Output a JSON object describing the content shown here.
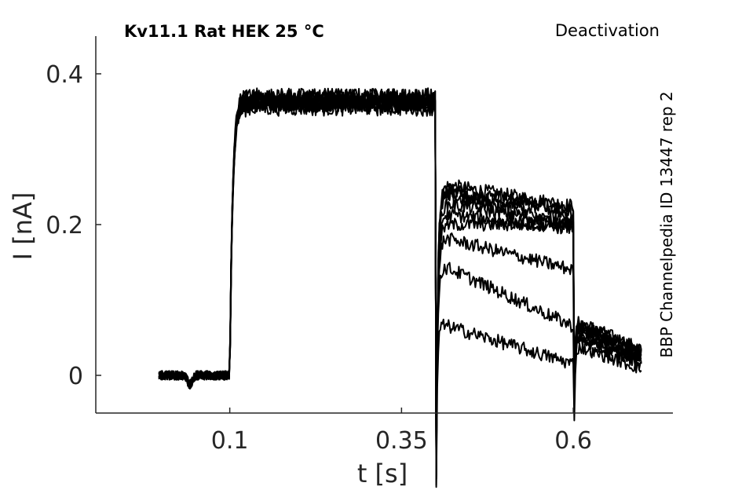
{
  "chart_data": {
    "type": "line",
    "title": "Kv11.1  Rat  HEK  25 °C",
    "protocol_label": "Deactivation",
    "side_label": "BBP Channelpedia ID 13447 rep 2",
    "xlabel": "t [s]",
    "ylabel": "I [nA]",
    "xlim": [
      -0.095,
      0.745
    ],
    "ylim": [
      -0.05,
      0.45
    ],
    "x_ticks": [
      0.1,
      0.35,
      0.6
    ],
    "x_tick_labels": [
      "0.1",
      "0.35",
      "0.6"
    ],
    "y_ticks": [
      0,
      0.2,
      0.4
    ],
    "y_tick_labels": [
      "0",
      "0.2",
      "0.4"
    ],
    "grid": false,
    "line_color": "#000000",
    "segments": {
      "baseline_end": 0.1,
      "step1_end": 0.4,
      "step2_end": 0.6,
      "trace_start": -0.003,
      "trace_end": 0.7
    },
    "series": [
      {
        "holding": 0.0,
        "peak": 0.365,
        "tail_start": 0.255,
        "tail_end": 0.225,
        "post": 0.075,
        "post_end": 0.035
      },
      {
        "holding": 0.0,
        "peak": 0.36,
        "tail_start": 0.25,
        "tail_end": 0.22,
        "post": 0.072,
        "post_end": 0.032
      },
      {
        "holding": 0.0,
        "peak": 0.37,
        "tail_start": 0.245,
        "tail_end": 0.215,
        "post": 0.07,
        "post_end": 0.03
      },
      {
        "holding": 0.0,
        "peak": 0.355,
        "tail_start": 0.24,
        "tail_end": 0.205,
        "post": 0.068,
        "post_end": 0.028
      },
      {
        "holding": 0.0,
        "peak": 0.365,
        "tail_start": 0.23,
        "tail_end": 0.2,
        "post": 0.065,
        "post_end": 0.025
      },
      {
        "holding": 0.0,
        "peak": 0.36,
        "tail_start": 0.215,
        "tail_end": 0.195,
        "post": 0.062,
        "post_end": 0.022
      },
      {
        "holding": 0.0,
        "peak": 0.37,
        "tail_start": 0.2,
        "tail_end": 0.2,
        "post": 0.06,
        "post_end": 0.02
      },
      {
        "holding": 0.0,
        "peak": 0.36,
        "tail_start": 0.185,
        "tail_end": 0.14,
        "post": 0.055,
        "post_end": 0.018
      },
      {
        "holding": 0.0,
        "peak": 0.365,
        "tail_start": 0.15,
        "tail_end": 0.065,
        "post": 0.05,
        "post_end": 0.015
      },
      {
        "holding": 0.0,
        "peak": 0.36,
        "tail_start": 0.07,
        "tail_end": 0.015,
        "post": 0.04,
        "post_end": 0.008
      }
    ]
  }
}
